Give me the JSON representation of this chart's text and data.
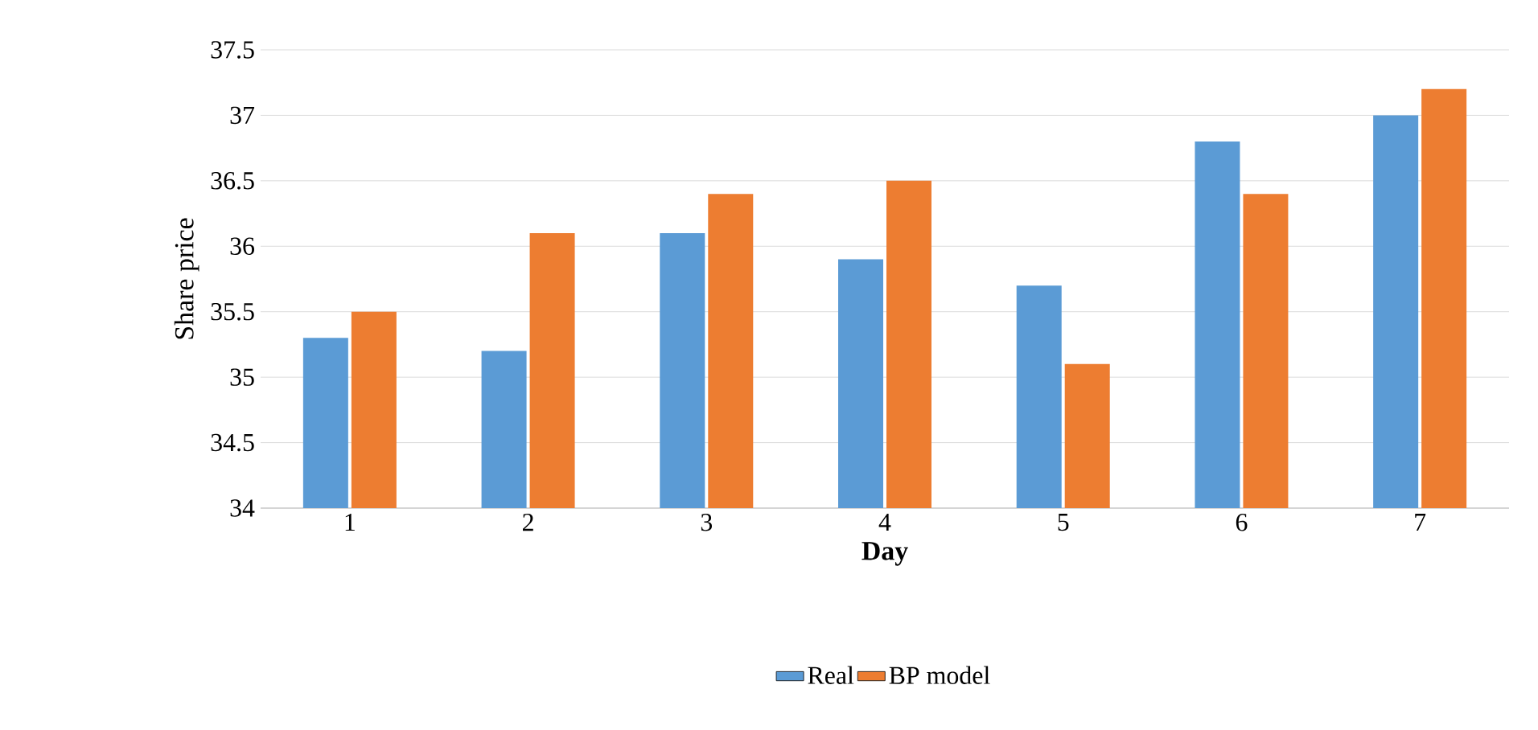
{
  "chart_data": {
    "type": "bar",
    "xlabel": "Day",
    "ylabel": "Share price",
    "categories": [
      "1",
      "2",
      "3",
      "4",
      "5",
      "6",
      "7"
    ],
    "series": [
      {
        "name": "Real",
        "color": "#5b9bd5",
        "values": [
          35.3,
          35.2,
          36.1,
          35.9,
          35.7,
          36.8,
          37.0
        ]
      },
      {
        "name": "BP model",
        "color": "#ed7d31",
        "values": [
          35.5,
          36.1,
          36.4,
          36.5,
          35.1,
          36.4,
          37.2
        ]
      }
    ],
    "ylim": [
      34,
      37.5
    ],
    "yticks": [
      34,
      {
        "value": 34.5,
        "label": "34.5"
      },
      35,
      {
        "value": 35.5,
        "label": "35.5"
      },
      36,
      {
        "value": 36.5,
        "label": "36.5"
      },
      37,
      {
        "value": 37.5,
        "label": "37.5"
      }
    ],
    "grid": "y",
    "legend": "bottom"
  }
}
